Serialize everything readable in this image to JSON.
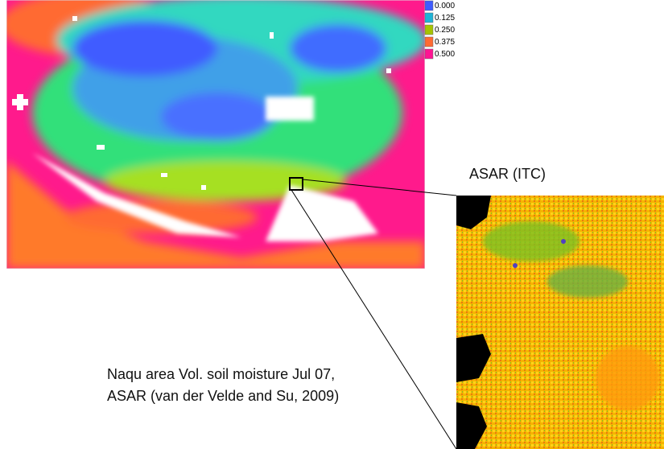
{
  "legend": {
    "items": [
      {
        "label": "0.000",
        "color": "#3f5cff"
      },
      {
        "label": "0.125",
        "color": "#1fb3d6"
      },
      {
        "label": "0.250",
        "color": "#a6c400"
      },
      {
        "label": "0.375",
        "color": "#ff6a33"
      },
      {
        "label": "0.500",
        "color": "#ff1493"
      }
    ]
  },
  "inset": {
    "label": "ASAR (ITC)"
  },
  "caption": {
    "lines": [
      "Naqu area Vol. soil moisture Jul 07,",
      "ASAR (van der Velde and Su, 2009)"
    ]
  }
}
